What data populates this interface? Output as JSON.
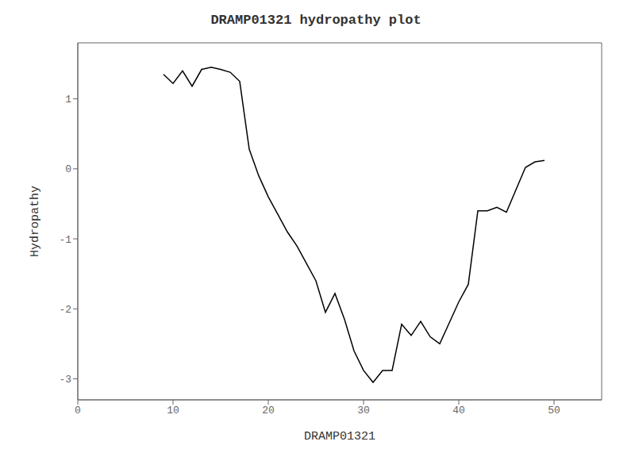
{
  "chart_data": {
    "type": "line",
    "title": "DRAMP01321 hydropathy plot",
    "xlabel": "DRAMP01321",
    "ylabel": "Hydropathy",
    "x": [
      9,
      10,
      11,
      12,
      13,
      14,
      15,
      16,
      17,
      18,
      19,
      20,
      21,
      22,
      23,
      24,
      25,
      26,
      27,
      28,
      29,
      30,
      31,
      32,
      33,
      34,
      35,
      36,
      37,
      38,
      39,
      40,
      41,
      42,
      43,
      44,
      45,
      46,
      47,
      48,
      49
    ],
    "values": [
      1.35,
      1.22,
      1.4,
      1.18,
      1.42,
      1.45,
      1.42,
      1.38,
      1.25,
      0.28,
      -0.1,
      -0.4,
      -0.65,
      -0.9,
      -1.1,
      -1.35,
      -1.6,
      -2.05,
      -1.78,
      -2.15,
      -2.6,
      -2.88,
      -3.05,
      -2.88,
      -2.88,
      -2.22,
      -2.38,
      -2.18,
      -2.4,
      -2.5,
      -2.2,
      -1.9,
      -1.65,
      -0.6,
      -0.6,
      -0.55,
      -0.62,
      -0.3,
      0.02,
      0.1,
      0.12
    ],
    "color": "#000000",
    "xlim": [
      0,
      55
    ],
    "ylim": [
      -3.3,
      1.8
    ],
    "xticks": [
      0,
      10,
      20,
      30,
      40,
      50
    ],
    "yticks": [
      -3,
      -2,
      -1,
      0,
      1
    ],
    "grid": false
  }
}
